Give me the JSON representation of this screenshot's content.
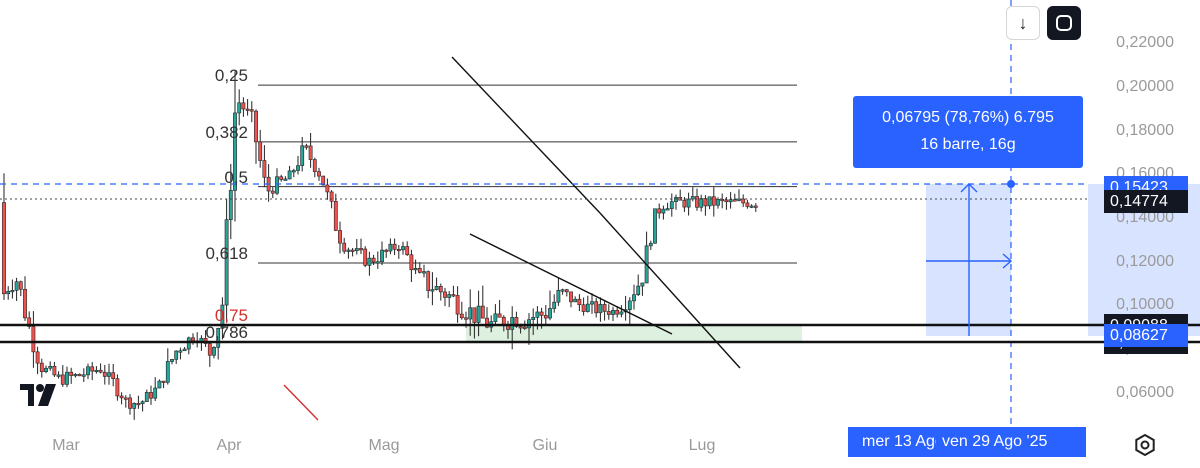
{
  "chart_data": {
    "type": "candlestick",
    "x_ticks": [
      "Mar",
      "Apr",
      "Mag",
      "Giu",
      "Lug"
    ],
    "y_ticks": [
      "0,22000",
      "0,20000",
      "0,18000",
      "0,16000",
      "0,14000",
      "0,12000",
      "0,10000",
      "0,08000",
      "0,06000"
    ],
    "y_tick_values": [
      0.22,
      0.2,
      0.18,
      0.16,
      0.14,
      0.12,
      0.1,
      0.08,
      0.06
    ],
    "ylim": [
      0.046,
      0.235
    ],
    "price_tags": [
      {
        "label": "0,15423",
        "value": 0.15423,
        "color": "#2962ff"
      },
      {
        "label": "0,14774",
        "value": 0.14774,
        "color": "#131722"
      },
      {
        "label": "0,09088",
        "value": 0.09088,
        "color": "#131722"
      },
      {
        "label": "0,08315",
        "value": 0.08315,
        "color": "#131722"
      },
      {
        "label": "0,08627",
        "value": 0.08627,
        "color": "#2962ff"
      }
    ],
    "fib_levels": [
      {
        "label": "0,25",
        "value": 0.2008,
        "color": "#333333"
      },
      {
        "label": "0,382",
        "value": 0.1748,
        "color": "#333333"
      },
      {
        "label": "0,5",
        "value": 0.1543,
        "color": "#333333"
      },
      {
        "label": "0,618",
        "value": 0.1193,
        "color": "#333333"
      },
      {
        "label": "0,75",
        "value": 0.0909,
        "color": "#d32f2f"
      },
      {
        "label": "0,786",
        "value": 0.0832,
        "color": "#333333"
      }
    ],
    "measure": {
      "line1": "0,06795 (78,76%) 6.795",
      "line2": "16 barre, 16g"
    },
    "date_range": {
      "start": "mer 13 Ago",
      "end": "ven 29 Ago '25"
    },
    "candle_count": 180,
    "colors": {
      "up": "#26a69a",
      "down": "#ef5350",
      "wick": "#222222",
      "measure": "#2962ff"
    }
  },
  "toolbar": {
    "download_glyph": "↓"
  },
  "icons": {
    "logo": "tradingview-logo",
    "settings": "settings-icon",
    "fullscreen": "fullscreen-icon"
  }
}
